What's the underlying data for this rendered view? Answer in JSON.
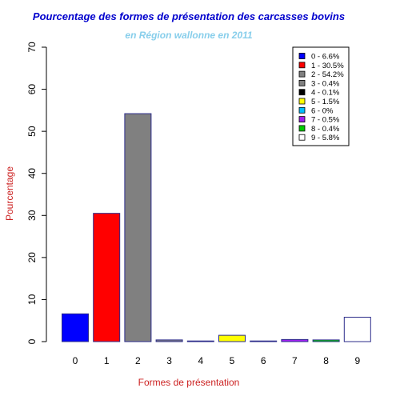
{
  "chart_data": {
    "type": "bar",
    "title": "Pourcentage des formes de présentation des carcasses bovins",
    "subtitle": "en Région wallonne en 2011",
    "xlabel": "Formes de présentation",
    "ylabel": "Pourcentage",
    "ylim": [
      0,
      70
    ],
    "yticks": [
      "0",
      "10",
      "20",
      "30",
      "40",
      "50",
      "60",
      "70"
    ],
    "categories": [
      "0",
      "1",
      "2",
      "3",
      "4",
      "5",
      "6",
      "7",
      "8",
      "9"
    ],
    "values": [
      6.6,
      30.5,
      54.2,
      0.4,
      0.1,
      1.5,
      0,
      0.5,
      0.4,
      5.8
    ],
    "colors": [
      "#0000ff",
      "#ff0000",
      "#808080",
      "#808080",
      "#000000",
      "#ffff00",
      "#00bfff",
      "#a020f0",
      "#00cc00",
      "#ffffff"
    ],
    "bar_border_color": "#2b2b8a",
    "title_color": "#0000cd",
    "subtitle_color": "#87ceeb",
    "axis_label_color": "#cc2222",
    "grid": false,
    "legend": {
      "placement": "top-right",
      "entries": [
        "0 - 6.6%",
        "1 - 30.5%",
        "2 - 54.2%",
        "3 - 0.4%",
        "4 - 0.1%",
        "5 - 1.5%",
        "6 - 0%",
        "7 - 0.5%",
        "8 - 0.4%",
        "9 - 5.8%"
      ]
    }
  }
}
